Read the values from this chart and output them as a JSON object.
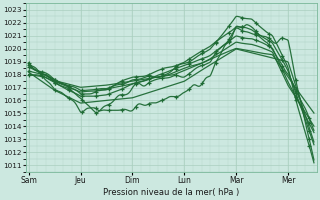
{
  "xlabel": "Pression niveau de la mer( hPa )",
  "ylim": [
    1010.5,
    1023.5
  ],
  "yticks": [
    1011,
    1012,
    1013,
    1014,
    1015,
    1016,
    1017,
    1018,
    1019,
    1020,
    1021,
    1022,
    1023
  ],
  "xtick_labels": [
    "Sam",
    "Jeu",
    "Dim",
    "Lun",
    "Mar",
    "Mer"
  ],
  "xtick_positions": [
    0,
    1,
    2,
    3,
    4,
    5
  ],
  "bg_color": "#cce8e0",
  "grid_color": "#aacfbf",
  "line_color": "#1f6b35"
}
